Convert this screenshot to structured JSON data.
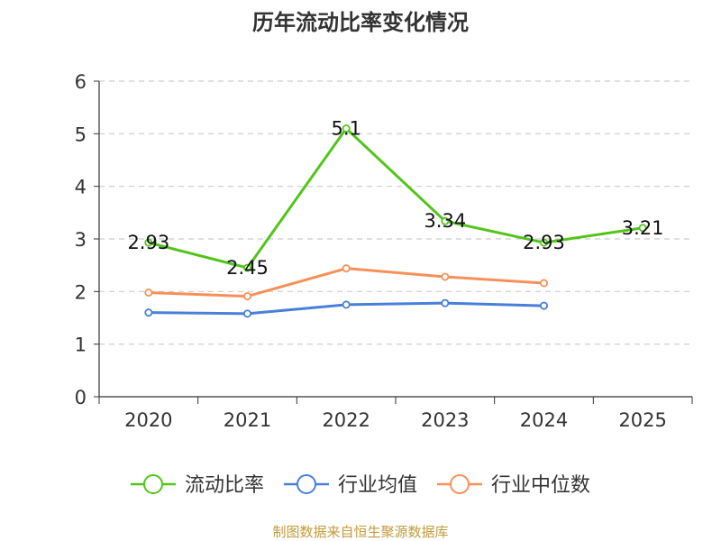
{
  "chart_data": {
    "type": "line",
    "title": "历年流动比率变化情况",
    "xlabel": "",
    "ylabel": "",
    "categories": [
      "2020",
      "2021",
      "2022",
      "2023",
      "2024",
      "2025"
    ],
    "ylim": [
      0,
      6
    ],
    "yticks": [
      0,
      1,
      2,
      3,
      4,
      5,
      6
    ],
    "grid": true,
    "legend_position": "bottom",
    "series": [
      {
        "name": "流动比率",
        "color": "#52c41a",
        "values": [
          2.93,
          2.45,
          5.1,
          3.34,
          2.93,
          3.21
        ],
        "labels": [
          "2.93",
          "2.45",
          "5.1",
          "3.34",
          "2.93",
          "3.21"
        ],
        "show_labels": true
      },
      {
        "name": "行业均值",
        "color": "#4a7fd9",
        "values": [
          1.6,
          1.58,
          1.75,
          1.78,
          1.73,
          null
        ],
        "show_labels": false
      },
      {
        "name": "行业中位数",
        "color": "#f79058",
        "values": [
          1.98,
          1.91,
          2.44,
          2.28,
          2.16,
          null
        ],
        "show_labels": false
      }
    ],
    "source": "制图数据来自恒生聚源数据库",
    "source_color": "#c29a3b"
  }
}
